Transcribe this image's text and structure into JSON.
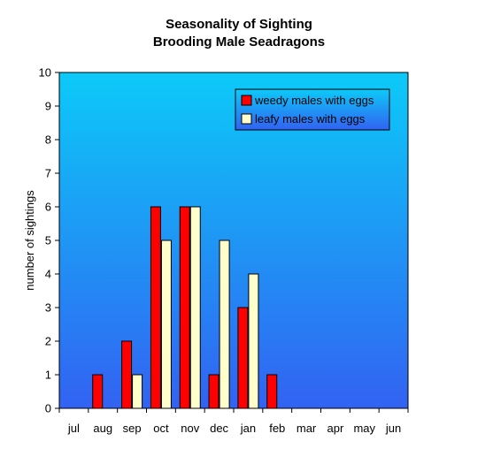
{
  "chart_data": {
    "type": "bar",
    "title": "Seasonality of Sighting",
    "subtitle": "Brooding Male Seadragons",
    "xlabel": "",
    "ylabel": "number of sightings",
    "ylim": [
      0,
      10
    ],
    "yticks": [
      "0",
      "1",
      "2",
      "3",
      "4",
      "5",
      "6",
      "7",
      "8",
      "9",
      "10"
    ],
    "grid": false,
    "legend_position": "top-right",
    "categories": [
      "jul",
      "aug",
      "sep",
      "oct",
      "nov",
      "dec",
      "jan",
      "feb",
      "mar",
      "apr",
      "may",
      "jun"
    ],
    "series": [
      {
        "name": "weedy males with eggs",
        "color": "#ff0000",
        "values": [
          0,
          1,
          2,
          6,
          6,
          1,
          3,
          1,
          0,
          0,
          0,
          0
        ]
      },
      {
        "name": "leafy males with eggs",
        "color": "#ffffcc",
        "values": [
          0,
          0,
          1,
          5,
          6,
          5,
          4,
          0,
          0,
          0,
          0,
          0
        ]
      }
    ],
    "plot_background": {
      "top_color": "#0ccaf8",
      "bottom_color": "#3262f2"
    }
  }
}
